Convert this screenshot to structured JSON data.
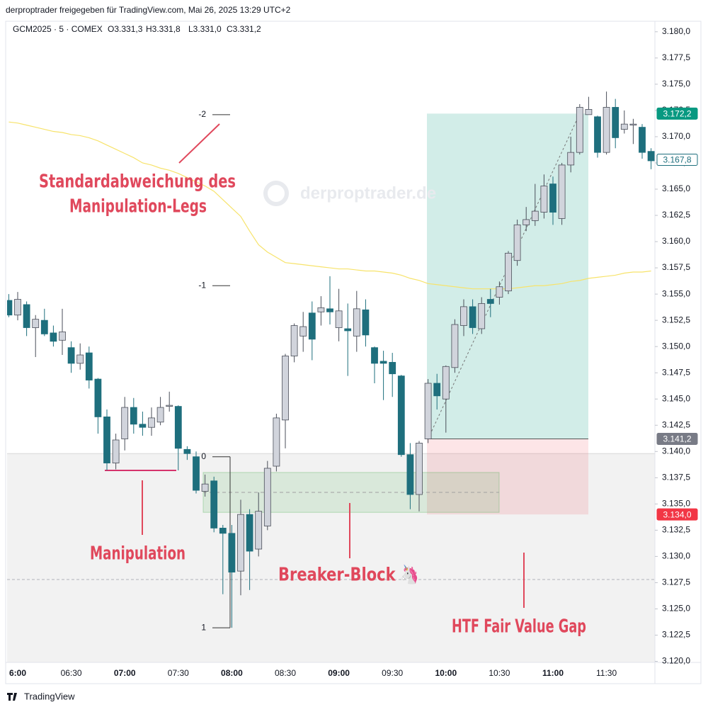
{
  "header": {
    "title": "derproptrader freigegeben für TradingView.com, Mai 26, 2025 13:29 UTC+2",
    "symbol": "GCM2025 · 5 · COMEX",
    "ohlc": [
      "O3.331,3",
      "H3.331,8",
      "L3.331,0",
      "C3.331,2"
    ],
    "watermark": "derproptrader.de",
    "footer": "TradingView"
  },
  "chart_data": {
    "type": "candlestick",
    "categories": [
      null,
      "6:00",
      null,
      null,
      null,
      null,
      null,
      "06:30",
      null,
      null,
      null,
      null,
      null,
      "07:00",
      null,
      null,
      null,
      null,
      null,
      "07:30",
      null,
      null,
      null,
      null,
      null,
      "08:00",
      null,
      null,
      null,
      null,
      null,
      "08:30",
      null,
      null,
      null,
      null,
      null,
      "09:00",
      null,
      null,
      null,
      null,
      null,
      "09:30",
      null,
      null,
      null,
      null,
      null,
      "10:00",
      null,
      null,
      null,
      null,
      null,
      "10:30",
      null,
      null,
      null,
      null,
      null,
      "11:00",
      null,
      null,
      null,
      null,
      null,
      "11:30",
      null,
      null,
      null,
      null,
      null
    ],
    "open": [
      3154.4,
      3153.0,
      3154.0,
      3151.8,
      3152.5,
      3151.3,
      3150.6,
      3149.9,
      3148.4,
      3149.4,
      3146.9,
      3143.3,
      3138.9,
      3141.2,
      3144.2,
      3142.6,
      3142.3,
      3142.8,
      3144.3,
      3144.3,
      3140.2,
      3139.5,
      3136.2,
      3137.2,
      3132.7,
      3132.2,
      3128.6,
      3134.0,
      3130.7,
      3132.9,
      3138.6,
      3143.0,
      3149.1,
      3151.0,
      3153.2,
      3153.3,
      3153.6,
      3151.8,
      3151.7,
      3151.0,
      3153.5,
      3149.9,
      3148.6,
      3148.5,
      3147.2,
      3139.7,
      3135.9,
      3141.2,
      3146.5,
      3145.0,
      3148.0,
      3152.0,
      3153.8,
      3151.7,
      3154.5,
      3154.7,
      3155.3,
      3158.2,
      3161.6,
      3162.0,
      3162.8,
      3165.5,
      3162.2,
      3167.3,
      3168.5,
      3172.1,
      3171.9,
      3168.5,
      3172.8,
      3170.7,
      3171.1,
      3170.9,
      3168.6
    ],
    "high": [
      3155.0,
      3155.2,
      3154.3,
      3153.0,
      3153.6,
      3152.0,
      3153.6,
      3150.5,
      3150.3,
      3150.0,
      3147.0,
      3144.0,
      3141.7,
      3145.2,
      3145.1,
      3143.8,
      3144.2,
      3145.2,
      3145.7,
      3144.4,
      3140.5,
      3140.0,
      3137.8,
      3137.6,
      3133.0,
      3133.0,
      3135.4,
      3134.5,
      3136.1,
      3139.1,
      3143.6,
      3149.3,
      3152.2,
      3153.3,
      3154.3,
      3154.8,
      3156.7,
      3155.5,
      3154.1,
      3155.3,
      3154.5,
      3150.0,
      3149.6,
      3149.4,
      3147.3,
      3140.8,
      3141.0,
      3146.9,
      3147.4,
      3148.2,
      3152.6,
      3154.5,
      3154.5,
      3154.7,
      3155.5,
      3156.2,
      3159.1,
      3162.1,
      3163.3,
      3165.5,
      3166.4,
      3166.2,
      3167.5,
      3170.0,
      3173.1,
      3173.8,
      3172.0,
      3174.3,
      3173.6,
      3172.5,
      3171.7,
      3171.2,
      3168.9
    ],
    "low": [
      3152.8,
      3152.5,
      3151.0,
      3149.0,
      3151.0,
      3150.0,
      3149.2,
      3147.5,
      3147.8,
      3146.0,
      3141.7,
      3138.2,
      3138.3,
      3140.1,
      3141.7,
      3141.5,
      3141.5,
      3142.5,
      3143.8,
      3138.2,
      3139.2,
      3136.0,
      3135.7,
      3132.3,
      3126.4,
      3123.2,
      3126.3,
      3126.8,
      3130.0,
      3132.5,
      3138.1,
      3140.3,
      3148.5,
      3149.5,
      3148.7,
      3152.0,
      3152.1,
      3150.5,
      3147.2,
      3149.5,
      3150.0,
      3146.5,
      3144.9,
      3145.2,
      3139.5,
      3134.5,
      3134.3,
      3140.8,
      3144.0,
      3141.8,
      3147.5,
      3151.0,
      3151.2,
      3151.2,
      3152.8,
      3154.0,
      3155.0,
      3157.7,
      3161.0,
      3161.5,
      3162.2,
      3161.6,
      3161.6,
      3166.6,
      3168.3,
      3172.1,
      3168.0,
      3168.3,
      3168.9,
      3170.3,
      3169.3,
      3167.9,
      3166.9
    ],
    "close": [
      3153.0,
      3154.5,
      3151.8,
      3152.6,
      3151.2,
      3150.5,
      3151.4,
      3148.4,
      3149.2,
      3146.8,
      3143.3,
      3138.9,
      3141.1,
      3144.2,
      3142.6,
      3142.3,
      3143.2,
      3144.2,
      3144.4,
      3140.3,
      3139.8,
      3136.3,
      3136.9,
      3132.7,
      3132.2,
      3128.5,
      3134.0,
      3130.5,
      3134.3,
      3138.4,
      3143.2,
      3149.1,
      3152.0,
      3151.9,
      3150.7,
      3153.7,
      3153.3,
      3153.4,
      3151.5,
      3153.6,
      3151.1,
      3148.4,
      3148.4,
      3147.4,
      3139.7,
      3135.9,
      3140.8,
      3146.5,
      3145.3,
      3148.1,
      3152.1,
      3153.8,
      3151.8,
      3154.1,
      3154.1,
      3155.7,
      3158.9,
      3161.6,
      3162.1,
      3162.9,
      3165.3,
      3162.8,
      3167.3,
      3168.5,
      3172.8,
      3172.6,
      3168.5,
      3172.8,
      3169.9,
      3171.2,
      3171.2,
      3168.5,
      3167.7
    ],
    "up_color": "#d1d4dc",
    "down_color": "#1e6f7d",
    "overlay": {
      "color": "#f7e36b",
      "values": [
        3171.4,
        3171.3,
        3171.1,
        3170.9,
        3170.7,
        3170.5,
        3170.4,
        3170.2,
        3170.1,
        3169.9,
        3169.6,
        3169.2,
        3168.8,
        3168.4,
        3168.0,
        3167.5,
        3167.3,
        3167.0,
        3166.8,
        3166.5,
        3166.1,
        3165.7,
        3165.3,
        3164.8,
        3164.0,
        3163.2,
        3162.4,
        3161.0,
        3159.7,
        3159.0,
        3158.5,
        3158.0,
        3157.9,
        3157.8,
        3157.7,
        3157.6,
        3157.5,
        3157.4,
        3157.4,
        3157.3,
        3157.2,
        3157.2,
        3157.1,
        3157.0,
        3156.8,
        3156.5,
        3156.3,
        3156.0,
        3155.9,
        3155.8,
        3155.7,
        3155.6,
        3155.5,
        3155.5,
        3155.5,
        3155.5,
        3155.5,
        3155.6,
        3155.7,
        3155.8,
        3155.8,
        3155.9,
        3156.0,
        3156.2,
        3156.3,
        3156.5,
        3156.6,
        3156.7,
        3156.8,
        3157.0,
        3157.1,
        3157.1,
        3157.2
      ]
    },
    "ylim": [
      3119.9,
      3181.0
    ],
    "yticks": [
      {
        "value": 3120,
        "label": "3.120,0"
      },
      {
        "value": 3122.5,
        "label": "3.122,5"
      },
      {
        "value": 3125,
        "label": "3.125,0"
      },
      {
        "value": 3127.5,
        "label": "3.127,5"
      },
      {
        "value": 3130,
        "label": "3.130,0"
      },
      {
        "value": 3132.5,
        "label": "3.132,5"
      },
      {
        "value": 3135,
        "label": "3.135,0"
      },
      {
        "value": 3137.5,
        "label": "3.137,5"
      },
      {
        "value": 3140,
        "label": "3.140,0"
      },
      {
        "value": 3142.5,
        "label": "3.142,5"
      },
      {
        "value": 3145,
        "label": "3.145,0"
      },
      {
        "value": 3147.5,
        "label": "3.147,5"
      },
      {
        "value": 3150,
        "label": "3.150,0"
      },
      {
        "value": 3152.5,
        "label": "3.152,5"
      },
      {
        "value": 3155,
        "label": "3.155,0"
      },
      {
        "value": 3157.5,
        "label": "3.157,5"
      },
      {
        "value": 3160,
        "label": "3.160,0"
      },
      {
        "value": 3162.5,
        "label": "3.162,5"
      },
      {
        "value": 3165,
        "label": "3.165,0"
      },
      {
        "value": 3167.5,
        "label": "3.167,5"
      },
      {
        "value": 3170,
        "label": "3.170,0"
      },
      {
        "value": 3172.5,
        "label": "3.172,5"
      },
      {
        "value": 3175,
        "label": "3.175,0"
      },
      {
        "value": 3177.5,
        "label": "3.177,5"
      },
      {
        "value": 3180,
        "label": "3.180,0"
      }
    ],
    "price_labels": [
      {
        "value": 3172.2,
        "label": "3.172,2",
        "background": "#089981",
        "text_color": "#ffffff"
      },
      {
        "value": 3167.8,
        "label": "3.167,8",
        "background": "#ffffff",
        "text_color": "#1e6f7d"
      },
      {
        "value": 3141.2,
        "label": "3.141,2",
        "background": "#787b86",
        "text_color": "#ffffff"
      },
      {
        "value": 3134.0,
        "label": "3.134,0",
        "background": "#f23645",
        "text_color": "#ffffff"
      }
    ],
    "fib_levels": [
      {
        "value": 3172.1,
        "label": "-2"
      },
      {
        "value": 3155.8,
        "label": "-1"
      },
      {
        "value": 3139.5,
        "label": "0"
      },
      {
        "value": 3123.2,
        "label": "1"
      }
    ],
    "fvg_top": 3139.8,
    "breaker_block": {
      "top": 3138.0,
      "mid": 3136.1,
      "bottom": 3134.2
    },
    "manipulation_level": 3138.2,
    "dashed_level": 3127.8,
    "position": {
      "target": 3172.2,
      "entry": 3141.2,
      "stop": 3134.0
    },
    "annotations": [
      "Standardabweichung des",
      "Manipulation-Legs",
      "Manipulation",
      "Breaker-Block 🦄",
      "HTF Fair Value Gap"
    ]
  }
}
